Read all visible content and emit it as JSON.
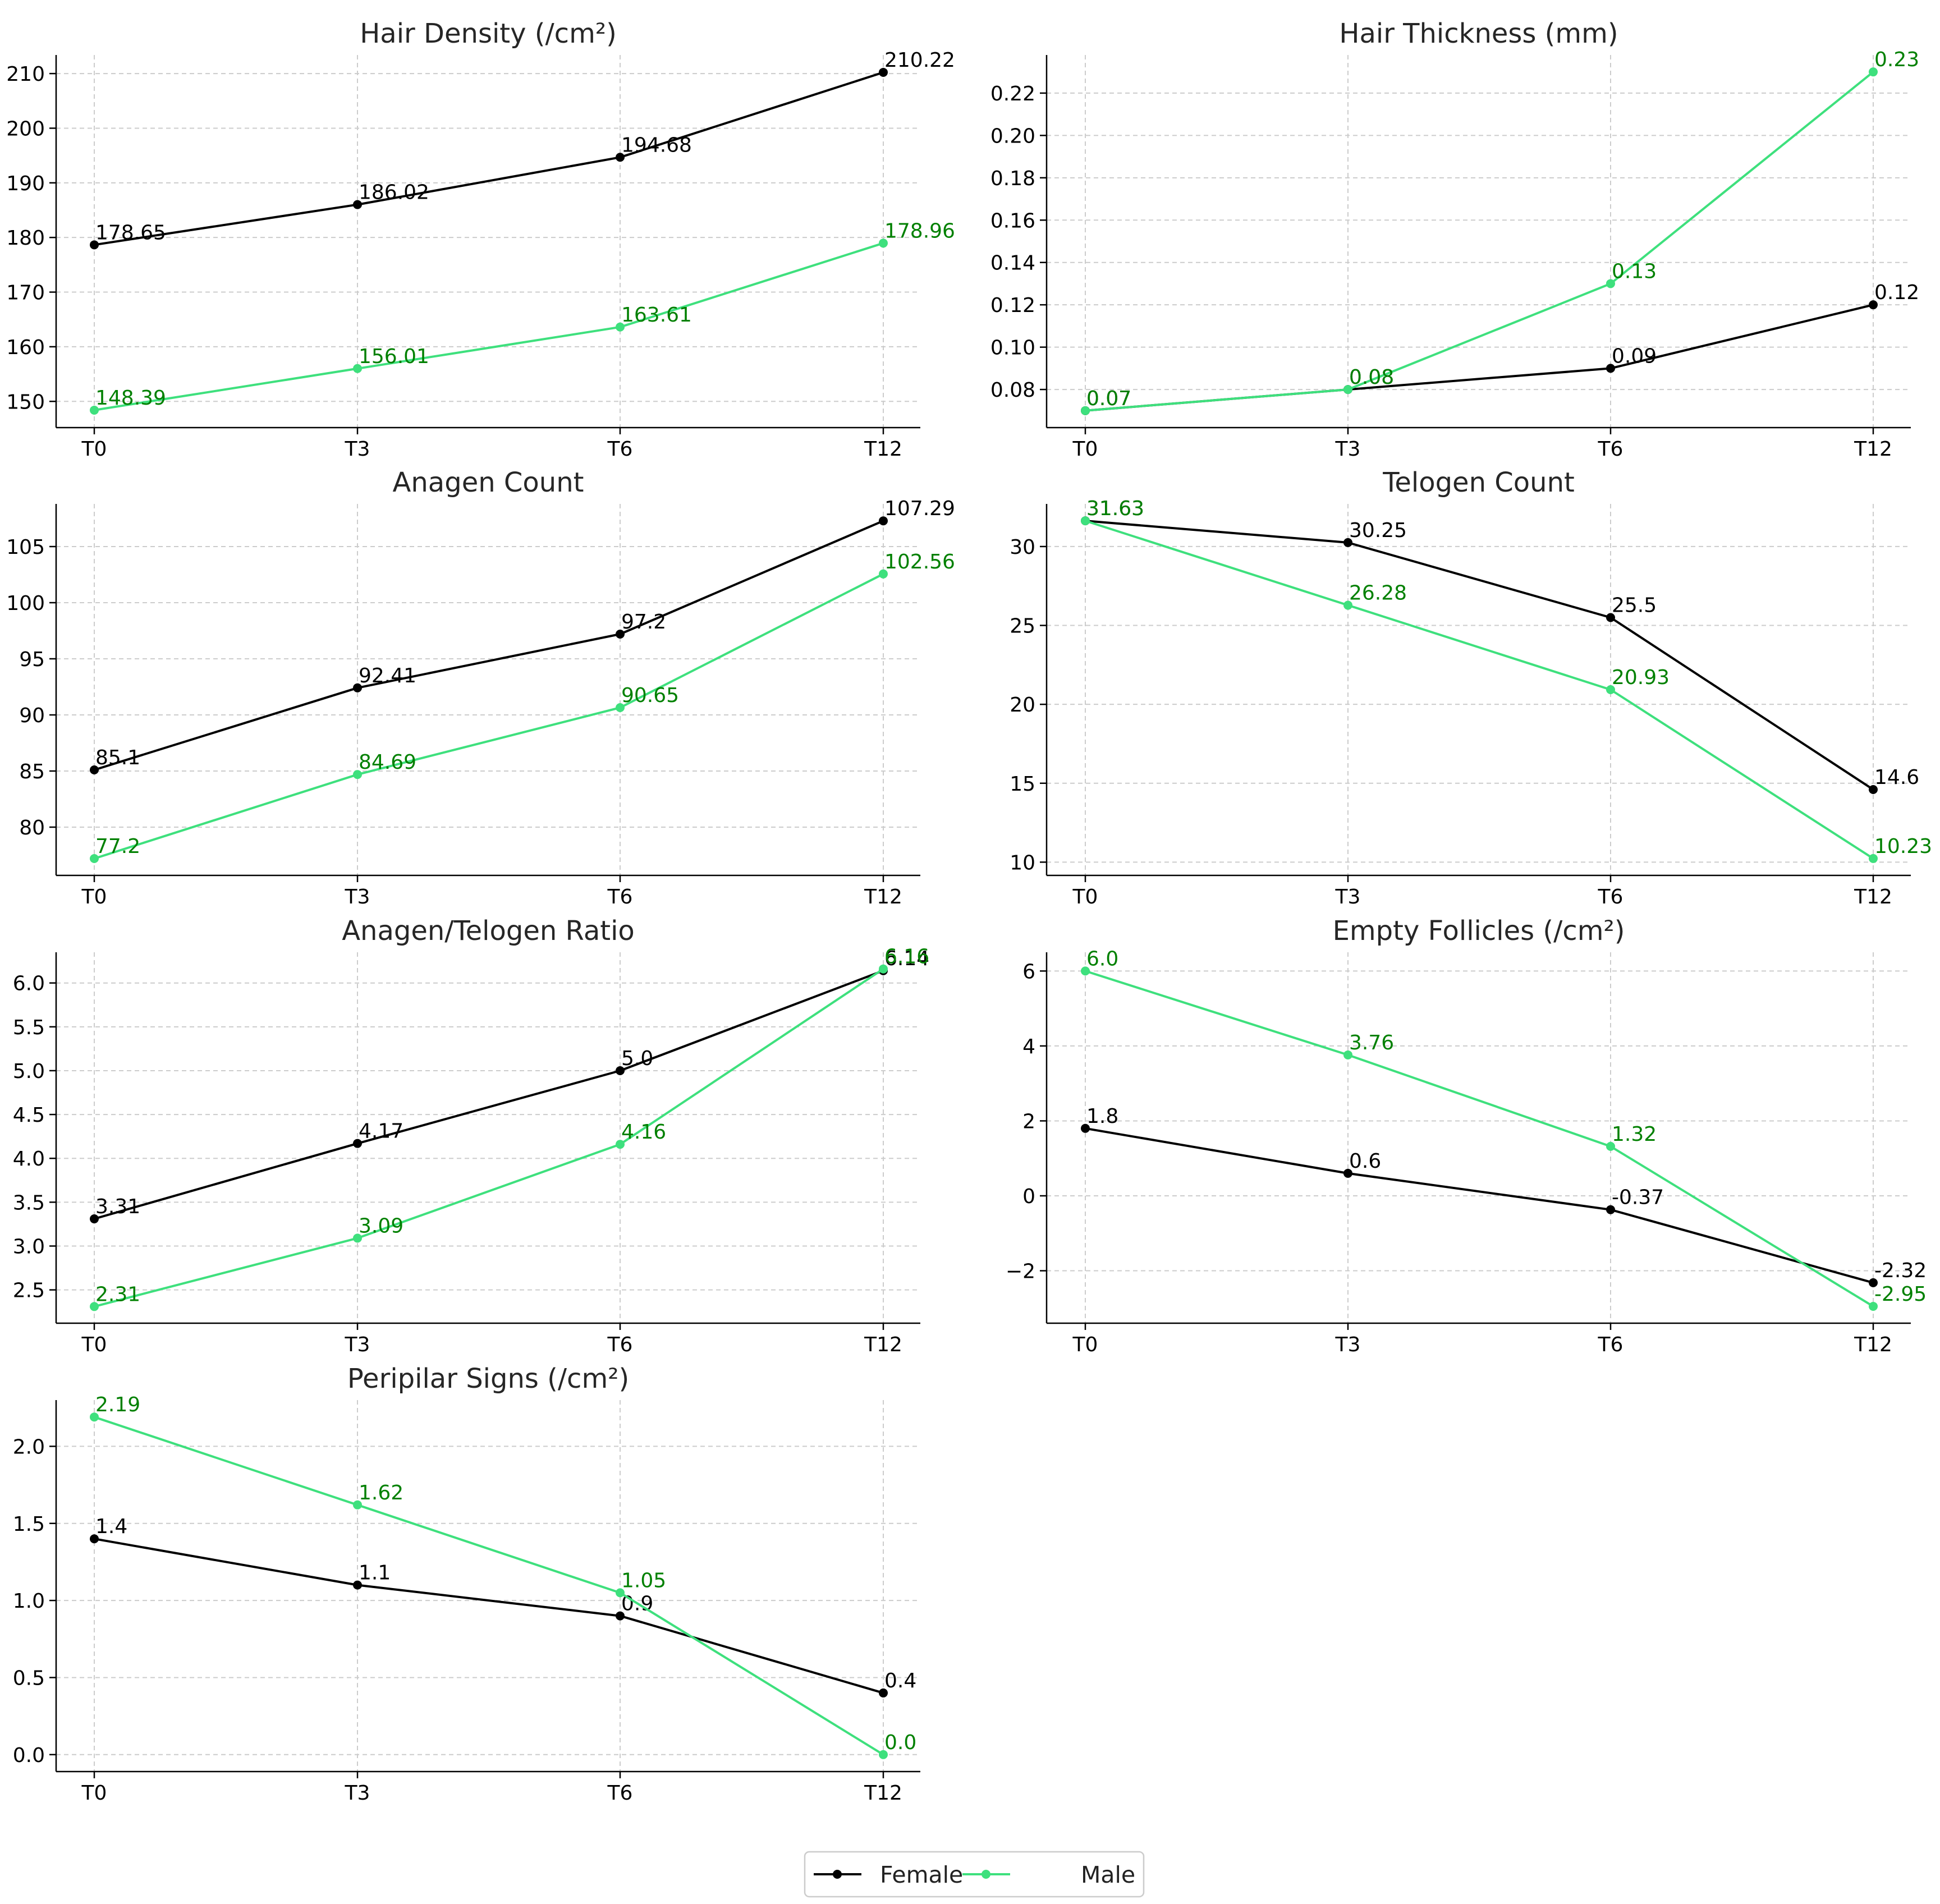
{
  "colors": {
    "female": "#000000",
    "male": "#3ee07d",
    "male_label": "#008000"
  },
  "legend": {
    "female_label": "Female",
    "male_label": "Male"
  },
  "chart_data": [
    {
      "type": "line",
      "title": "Hair Density (/cm²)",
      "categories": [
        "T0",
        "T3",
        "T6",
        "T12"
      ],
      "ylim": [
        145.2,
        213.4
      ],
      "yticks": [
        150,
        160,
        170,
        180,
        190,
        200,
        210
      ],
      "ytick_labels": [
        "150",
        "160",
        "170",
        "180",
        "190",
        "200",
        "210"
      ],
      "grid": true,
      "series": [
        {
          "name": "Female",
          "values": [
            178.65,
            186.02,
            194.68,
            210.22
          ],
          "labels": [
            "178.65",
            "186.02",
            "194.68",
            "210.22"
          ]
        },
        {
          "name": "Male",
          "values": [
            148.39,
            156.01,
            163.61,
            178.96
          ],
          "labels": [
            "148.39",
            "156.01",
            "163.61",
            "178.96"
          ]
        }
      ]
    },
    {
      "type": "line",
      "title": "Hair Thickness (mm)",
      "categories": [
        "T0",
        "T3",
        "T6",
        "T12"
      ],
      "ylim": [
        0.062,
        0.238
      ],
      "yticks": [
        0.08,
        0.1,
        0.12,
        0.14,
        0.16,
        0.18,
        0.2,
        0.22
      ],
      "ytick_labels": [
        "0.08",
        "0.10",
        "0.12",
        "0.14",
        "0.16",
        "0.18",
        "0.20",
        "0.22"
      ],
      "grid": true,
      "series": [
        {
          "name": "Female",
          "values": [
            0.07,
            0.08,
            0.09,
            0.12
          ],
          "labels": [
            "0.07",
            "0.08",
            "0.09",
            "0.12"
          ]
        },
        {
          "name": "Male",
          "values": [
            0.07,
            0.08,
            0.13,
            0.23
          ],
          "labels": [
            "0.07",
            "0.08",
            "0.13",
            "0.23"
          ]
        }
      ]
    },
    {
      "type": "line",
      "title": "Anagen Count",
      "categories": [
        "T0",
        "T3",
        "T6",
        "T12"
      ],
      "ylim": [
        75.7,
        108.8
      ],
      "yticks": [
        80,
        85,
        90,
        95,
        100,
        105
      ],
      "ytick_labels": [
        "80",
        "85",
        "90",
        "95",
        "100",
        "105"
      ],
      "grid": true,
      "series": [
        {
          "name": "Female",
          "values": [
            85.1,
            92.41,
            97.2,
            107.29
          ],
          "labels": [
            "85.1",
            "92.41",
            "97.2",
            "107.29"
          ]
        },
        {
          "name": "Male",
          "values": [
            77.2,
            84.69,
            90.65,
            102.56
          ],
          "labels": [
            "77.2",
            "84.69",
            "90.65",
            "102.56"
          ]
        }
      ]
    },
    {
      "type": "line",
      "title": "Telogen Count",
      "categories": [
        "T0",
        "T3",
        "T6",
        "T12"
      ],
      "ylim": [
        9.16,
        32.7
      ],
      "yticks": [
        10,
        15,
        20,
        25,
        30
      ],
      "ytick_labels": [
        "10",
        "15",
        "20",
        "25",
        "30"
      ],
      "grid": true,
      "series": [
        {
          "name": "Female",
          "values": [
            31.63,
            30.25,
            25.5,
            14.6
          ],
          "labels": [
            "31.63",
            "30.25",
            "25.5",
            "14.6"
          ]
        },
        {
          "name": "Male",
          "values": [
            31.63,
            26.28,
            20.93,
            10.23
          ],
          "labels": [
            "31.63",
            "26.28",
            "20.93",
            "10.23"
          ]
        }
      ]
    },
    {
      "type": "line",
      "title": "Anagen/Telogen Ratio",
      "categories": [
        "T0",
        "T3",
        "T6",
        "T12"
      ],
      "ylim": [
        2.12,
        6.35
      ],
      "yticks": [
        2.5,
        3.0,
        3.5,
        4.0,
        4.5,
        5.0,
        5.5,
        6.0
      ],
      "ytick_labels": [
        "2.5",
        "3.0",
        "3.5",
        "4.0",
        "4.5",
        "5.0",
        "5.5",
        "6.0"
      ],
      "grid": true,
      "series": [
        {
          "name": "Female",
          "values": [
            3.31,
            4.17,
            5.0,
            6.14
          ],
          "labels": [
            "3.31",
            "4.17",
            "5.0",
            "6.14"
          ]
        },
        {
          "name": "Male",
          "values": [
            2.31,
            3.09,
            4.16,
            6.16
          ],
          "labels": [
            "2.31",
            "3.09",
            "4.16",
            "6.16"
          ]
        }
      ]
    },
    {
      "type": "line",
      "title": "Empty Follicles (/cm²)",
      "categories": [
        "T0",
        "T3",
        "T6",
        "T12"
      ],
      "ylim": [
        -3.4,
        6.5
      ],
      "yticks": [
        -2,
        0,
        2,
        4,
        6
      ],
      "ytick_labels": [
        "−2",
        "0",
        "2",
        "4",
        "6"
      ],
      "grid": true,
      "series": [
        {
          "name": "Female",
          "values": [
            1.8,
            0.6,
            -0.37,
            -2.32
          ],
          "labels": [
            "1.8",
            "0.6",
            "-0.37",
            "-2.32"
          ]
        },
        {
          "name": "Male",
          "values": [
            6.0,
            3.76,
            1.32,
            -2.95
          ],
          "labels": [
            "6.0",
            "3.76",
            "1.32",
            "-2.95"
          ]
        }
      ]
    },
    {
      "type": "line",
      "title": "Peripilar Signs (/cm²)",
      "categories": [
        "T0",
        "T3",
        "T6",
        "T12"
      ],
      "ylim": [
        -0.11,
        2.3
      ],
      "yticks": [
        0.0,
        0.5,
        1.0,
        1.5,
        2.0
      ],
      "ytick_labels": [
        "0.0",
        "0.5",
        "1.0",
        "1.5",
        "2.0"
      ],
      "grid": true,
      "series": [
        {
          "name": "Female",
          "values": [
            1.4,
            1.1,
            0.9,
            0.4
          ],
          "labels": [
            "1.4",
            "1.1",
            "0.9",
            "0.4"
          ]
        },
        {
          "name": "Male",
          "values": [
            2.19,
            1.62,
            1.05,
            0.0
          ],
          "labels": [
            "2.19",
            "1.62",
            "1.05",
            "0.0"
          ]
        }
      ]
    }
  ]
}
